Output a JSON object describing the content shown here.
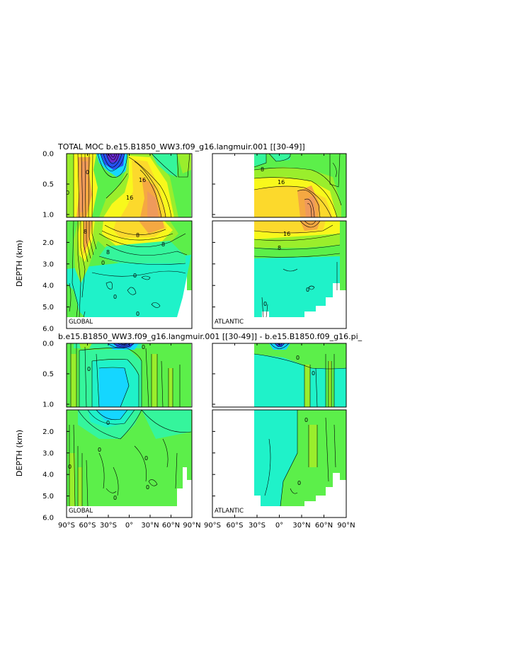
{
  "chart_data": {
    "type": "heatmap",
    "rows": [
      {
        "title": "TOTAL  MOC  b.e15.B1850_WW3.f09_g16.langmuir.001  [[30-49]]",
        "ylabel": "DEPTH  (km)",
        "panels": [
          {
            "region": "GLOBAL",
            "lat_range": [
              -80,
              90
            ],
            "contour_labels": [
              "0",
              "8",
              "16",
              "16",
              "8",
              "0",
              "0",
              "0",
              "0",
              "0"
            ],
            "max_value": 24,
            "min_value": -24
          },
          {
            "region": "ATLANTIC",
            "lat_range": [
              -34,
              90
            ],
            "contour_labels": [
              "8",
              "16",
              "16",
              "8",
              "0",
              "0"
            ],
            "max_value": 20,
            "min_value": 0
          }
        ]
      },
      {
        "title": "b.e15.B1850_WW3.f09_g16.langmuir.001  [[30-49]]  -  b.e15.B1850.f09_g16.pi_",
        "ylabel": "DEPTH  (km)",
        "panels": [
          {
            "region": "GLOBAL",
            "lat_range": [
              -80,
              90
            ],
            "contour_labels": [
              "0",
              "0",
              "0",
              "0",
              "0",
              "0",
              "0",
              "0"
            ],
            "max_value": 2,
            "min_value": -3
          },
          {
            "region": "ATLANTIC",
            "lat_range": [
              -34,
              90
            ],
            "contour_labels": [
              "0",
              "0",
              "0",
              "0"
            ],
            "max_value": 1,
            "min_value": -1
          }
        ]
      }
    ],
    "y_ticks_upper": [
      "0.0",
      "0.5",
      "1.0"
    ],
    "y_ticks_lower": [
      "2.0",
      "3.0",
      "4.0",
      "5.0",
      "6.0"
    ],
    "y_ticks_lower_values": [
      2,
      3,
      4,
      5,
      6
    ],
    "y_ticks_upper_values": [
      0,
      0.5,
      1
    ],
    "ylim": [
      0,
      6
    ],
    "x_ticks": [
      [
        "90°S",
        "60°S",
        "30°S",
        "0°",
        "30°N",
        "60°N",
        "90°N"
      ],
      [
        "90°S",
        "60°S",
        "30°S",
        "0°",
        "30°N",
        "60°N",
        "90°N"
      ]
    ],
    "x_tick_values": [
      -90,
      -60,
      -30,
      0,
      30,
      60,
      90
    ],
    "xlim": [
      -90,
      90
    ],
    "colors": {
      "violet": "#6a2ad0",
      "blue": "#2650f0",
      "cyan": "#15d6ff",
      "aqua": "#1ff2c9",
      "sea": "#35f59c",
      "green": "#5cef4a",
      "lime": "#9aee2c",
      "yellow": "#f8f81c",
      "gold": "#fcd92c",
      "orange": "#f5a842",
      "salmon": "#ef9a5b"
    }
  }
}
